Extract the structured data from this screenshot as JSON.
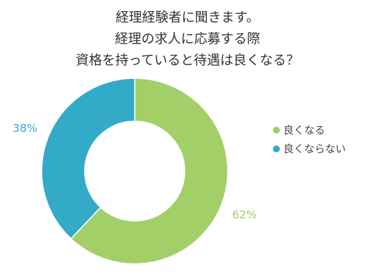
{
  "chart_data": {
    "type": "pie",
    "variant": "donut",
    "title_lines": [
      "経理経験者に聞きます。",
      "経理の求人に応募する際",
      "資格を持っていると待遇は良くなる？"
    ],
    "categories": [
      "良くなる",
      "良くならない"
    ],
    "values": [
      62,
      38
    ],
    "data_labels": [
      "62%",
      "38%"
    ],
    "colors": [
      "#a3cf69",
      "#33aac8"
    ],
    "legend_position": "right"
  }
}
